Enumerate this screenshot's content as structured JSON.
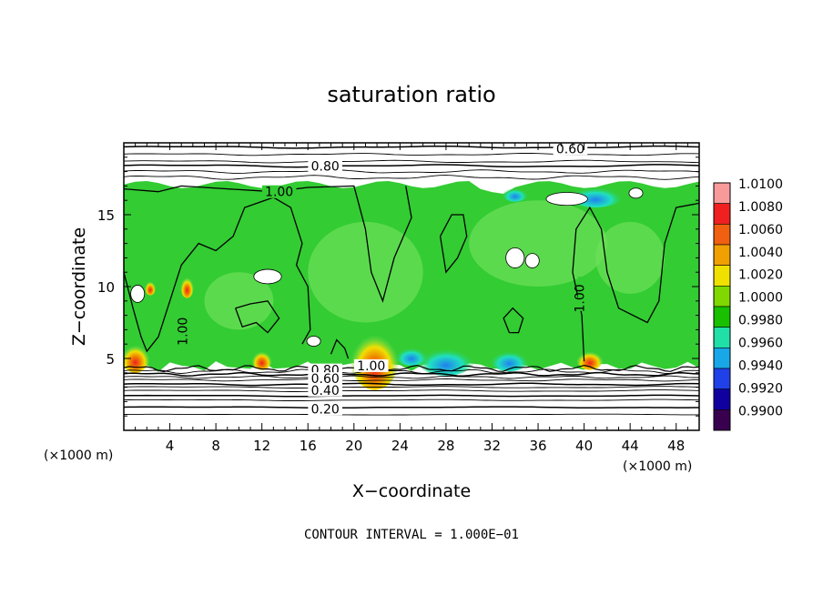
{
  "chart_data": {
    "type": "heatmap",
    "title": "saturation ratio",
    "xlabel": "X−coordinate",
    "ylabel": "Z−coordinate",
    "x_unit": "(×1000 m)",
    "y_unit": "(×1000 m)",
    "xlim": [
      0,
      50
    ],
    "ylim": [
      0,
      20
    ],
    "x_ticks": [
      4,
      8,
      12,
      16,
      20,
      24,
      28,
      32,
      36,
      40,
      44,
      48
    ],
    "y_ticks": [
      5,
      10,
      15
    ],
    "footer": "CONTOUR INTERVAL = 1.000E−01",
    "colorbar": {
      "levels": [
        "1.0100",
        "1.0080",
        "1.0060",
        "1.0040",
        "1.0020",
        "1.0000",
        "0.9980",
        "0.9960",
        "0.9940",
        "0.9920",
        "0.9900"
      ],
      "colors": [
        "#f89a9a",
        "#f02020",
        "#f06010",
        "#f0a000",
        "#f0e000",
        "#80d800",
        "#18c000",
        "#20e0a8",
        "#18a8e8",
        "#2040e8",
        "#1000a0",
        "#3a0050"
      ]
    },
    "field_colors": {
      "main": "#33cc33",
      "light": "#6ee05a",
      "cyan": "#20e0c0",
      "blue": "#2080f0",
      "yellow": "#f0e000",
      "orange": "#f08000",
      "red": "#f02020"
    },
    "contour_labels": [
      {
        "text": "0.60",
        "x": 38.8,
        "z": 19.6
      },
      {
        "text": "0.80",
        "x": 17.5,
        "z": 18.4
      },
      {
        "text": "1.00",
        "x": 13.5,
        "z": 16.6
      },
      {
        "text": "1.00",
        "x": 40.0,
        "z": 9.5
      },
      {
        "text": "1.00",
        "x": 5.5,
        "z": 7.2
      },
      {
        "text": "1.00",
        "x": 21.5,
        "z": 4.5
      },
      {
        "text": "0.80",
        "x": 17.5,
        "z": 4.2
      },
      {
        "text": "0.60",
        "x": 17.5,
        "z": 3.6
      },
      {
        "text": "0.40",
        "x": 17.5,
        "z": 2.8
      },
      {
        "text": "0.20",
        "x": 17.5,
        "z": 1.5
      }
    ]
  }
}
